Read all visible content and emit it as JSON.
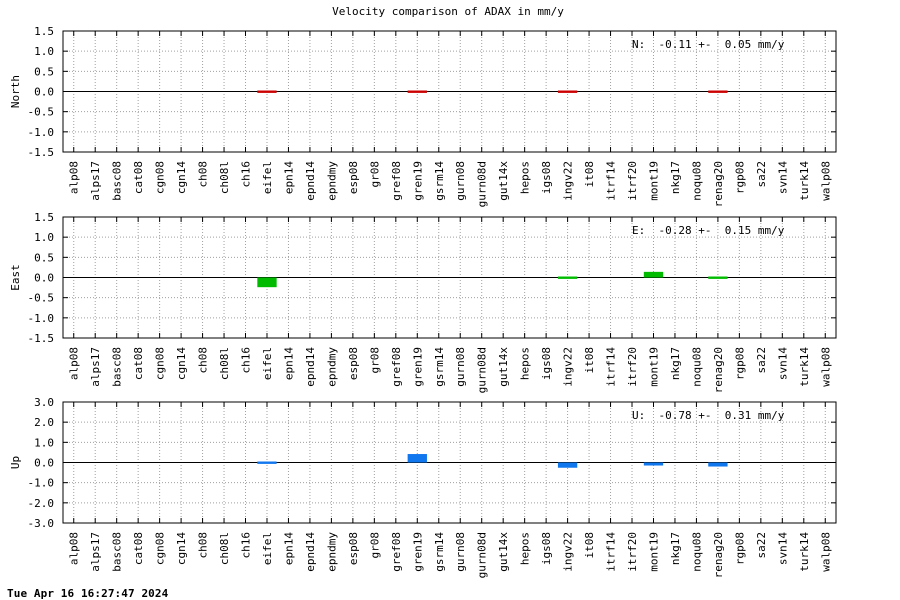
{
  "title": "Velocity comparison of ADAX in mm/y",
  "timestamp": "Tue Apr 16 16:27:47 2024",
  "chart_data": [
    {
      "type": "bar",
      "ylabel": "North",
      "ylim": [
        -1.5,
        1.5
      ],
      "yticks": [
        "1.5",
        "1.0",
        "0.5",
        "0.0",
        "-0.5",
        "-1.0",
        "-1.5"
      ],
      "grid": true,
      "color": "#cc0000",
      "annotation": "N:  -0.11 +-  0.05 mm/y",
      "categories": [
        "alp08",
        "alps17",
        "basc08",
        "cat08",
        "cgn08",
        "cgn14",
        "ch08",
        "ch08l",
        "ch16",
        "eifel",
        "epn14",
        "epnd14",
        "epndmy",
        "esp08",
        "gr08",
        "gref08",
        "gren19",
        "gsrm14",
        "gurn08",
        "gurn08d",
        "gut14x",
        "hepos",
        "igs08",
        "ingv22",
        "it08",
        "itrf14",
        "itrf20",
        "mont19",
        "nkg17",
        "noqu08",
        "renag20",
        "rgp08",
        "sa22",
        "svn14",
        "turk14",
        "walp08"
      ],
      "values": [
        null,
        null,
        null,
        null,
        null,
        null,
        null,
        null,
        null,
        -0.04,
        null,
        null,
        null,
        null,
        null,
        null,
        -0.04,
        null,
        null,
        null,
        null,
        null,
        null,
        0.03,
        null,
        null,
        null,
        null,
        null,
        null,
        -0.02,
        null,
        null,
        null,
        null,
        null
      ]
    },
    {
      "type": "bar",
      "ylabel": "East",
      "ylim": [
        -1.5,
        1.5
      ],
      "yticks": [
        "1.5",
        "1.0",
        "0.5",
        "0.0",
        "-0.5",
        "-1.0",
        "-1.5"
      ],
      "grid": true,
      "color": "#00bb00",
      "annotation": "E:  -0.28 +-  0.15 mm/y",
      "categories": [
        "alp08",
        "alps17",
        "basc08",
        "cat08",
        "cgn08",
        "cgn14",
        "ch08",
        "ch08l",
        "ch16",
        "eifel",
        "epn14",
        "epnd14",
        "epndmy",
        "esp08",
        "gr08",
        "gref08",
        "gren19",
        "gsrm14",
        "gurn08",
        "gurn08d",
        "gut14x",
        "hepos",
        "igs08",
        "ingv22",
        "it08",
        "itrf14",
        "itrf20",
        "mont19",
        "nkg17",
        "noqu08",
        "renag20",
        "rgp08",
        "sa22",
        "svn14",
        "turk14",
        "walp08"
      ],
      "values": [
        null,
        null,
        null,
        null,
        null,
        null,
        null,
        null,
        null,
        -0.24,
        null,
        null,
        null,
        null,
        null,
        null,
        null,
        null,
        null,
        null,
        null,
        null,
        null,
        0.02,
        null,
        null,
        null,
        0.14,
        null,
        null,
        -0.03,
        null,
        null,
        null,
        null,
        null
      ]
    },
    {
      "type": "bar",
      "ylabel": "Up",
      "ylim": [
        -3.0,
        3.0
      ],
      "yticks": [
        "3.0",
        "2.0",
        "1.0",
        "0.0",
        "-1.0",
        "-2.0",
        "-3.0"
      ],
      "grid": true,
      "color": "#1177ee",
      "annotation": "U:  -0.78 +-  0.31 mm/y",
      "categories": [
        "alp08",
        "alps17",
        "basc08",
        "cat08",
        "cgn08",
        "cgn14",
        "ch08",
        "ch08l",
        "ch16",
        "eifel",
        "epn14",
        "epnd14",
        "epndmy",
        "esp08",
        "gr08",
        "gref08",
        "gren19",
        "gsrm14",
        "gurn08",
        "gurn08d",
        "gut14x",
        "hepos",
        "igs08",
        "ingv22",
        "it08",
        "itrf14",
        "itrf20",
        "mont19",
        "nkg17",
        "noqu08",
        "renag20",
        "rgp08",
        "sa22",
        "svn14",
        "turk14",
        "walp08"
      ],
      "values": [
        null,
        null,
        null,
        null,
        null,
        null,
        null,
        null,
        null,
        -0.06,
        null,
        null,
        null,
        null,
        null,
        null,
        0.42,
        null,
        null,
        null,
        null,
        null,
        null,
        -0.26,
        null,
        null,
        null,
        -0.15,
        null,
        null,
        -0.2,
        null,
        null,
        null,
        null,
        null
      ]
    }
  ]
}
